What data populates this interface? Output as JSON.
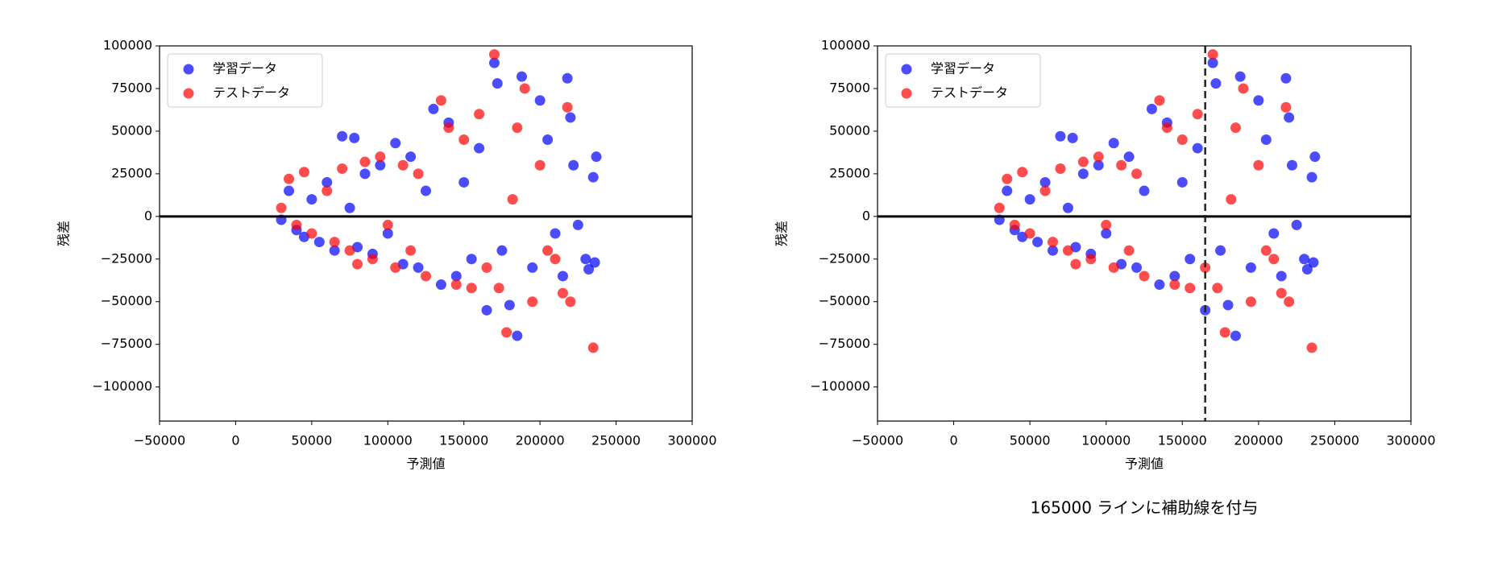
{
  "chart_data": [
    {
      "type": "scatter",
      "xlabel": "予測値",
      "ylabel": "残差",
      "xlim": [
        -50000,
        300000
      ],
      "xticks": [
        {
          "value": -50000,
          "label": "−50000"
        },
        0,
        50000,
        100000,
        150000,
        200000,
        250000,
        300000
      ],
      "ylim": [
        -120000,
        100000
      ],
      "yticks": [
        {
          "value": -100000,
          "label": "−100000"
        },
        {
          "value": -75000,
          "label": "−75000"
        },
        {
          "value": -50000,
          "label": "−50000"
        },
        {
          "value": -25000,
          "label": "−25000"
        },
        0,
        25000,
        50000,
        75000,
        100000
      ],
      "hline": 0,
      "legend": "upper left",
      "series": [
        {
          "name": "学習データ",
          "color": "#0000ff",
          "x": [
            30000,
            35000,
            40000,
            45000,
            50000,
            55000,
            60000,
            65000,
            70000,
            75000,
            78000,
            80000,
            85000,
            90000,
            95000,
            100000,
            105000,
            110000,
            115000,
            120000,
            125000,
            130000,
            135000,
            140000,
            145000,
            150000,
            155000,
            160000,
            165000,
            170000,
            172000,
            175000,
            180000,
            185000,
            188000,
            195000,
            200000,
            205000,
            210000,
            215000,
            218000,
            220000,
            222000,
            225000,
            230000,
            232000,
            235000,
            237000,
            236000
          ],
          "values": [
            -2000,
            15000,
            -8000,
            -12000,
            10000,
            -15000,
            20000,
            -20000,
            47000,
            5000,
            46000,
            -18000,
            25000,
            -22000,
            30000,
            -10000,
            43000,
            -28000,
            35000,
            -30000,
            15000,
            63000,
            -40000,
            55000,
            -35000,
            20000,
            -25000,
            40000,
            -55000,
            90000,
            78000,
            -20000,
            -52000,
            -70000,
            82000,
            -30000,
            68000,
            45000,
            -10000,
            -35000,
            81000,
            58000,
            30000,
            -5000,
            -25000,
            -31000,
            23000,
            35000,
            -27000
          ]
        },
        {
          "name": "テストデータ",
          "color": "#ff0000",
          "x": [
            30000,
            35000,
            40000,
            45000,
            50000,
            60000,
            65000,
            70000,
            75000,
            80000,
            85000,
            90000,
            95000,
            100000,
            105000,
            110000,
            115000,
            120000,
            125000,
            135000,
            140000,
            145000,
            150000,
            155000,
            160000,
            165000,
            170000,
            173000,
            178000,
            182000,
            185000,
            190000,
            195000,
            200000,
            205000,
            210000,
            215000,
            218000,
            220000,
            235000
          ],
          "values": [
            5000,
            22000,
            -5000,
            26000,
            -10000,
            15000,
            -15000,
            28000,
            -20000,
            -28000,
            32000,
            -25000,
            35000,
            -5000,
            -30000,
            30000,
            -20000,
            25000,
            -35000,
            68000,
            52000,
            -40000,
            45000,
            -42000,
            60000,
            -30000,
            95000,
            -42000,
            -68000,
            10000,
            52000,
            75000,
            -50000,
            30000,
            -20000,
            -25000,
            -45000,
            64000,
            -50000,
            -77000
          ]
        }
      ]
    },
    {
      "type": "scatter",
      "xlabel": "予測値",
      "ylabel": "残差",
      "xlim": [
        -50000,
        300000
      ],
      "xticks": [
        {
          "value": -50000,
          "label": "−50000"
        },
        0,
        50000,
        100000,
        150000,
        200000,
        250000,
        300000
      ],
      "ylim": [
        -120000,
        100000
      ],
      "yticks": [
        {
          "value": -100000,
          "label": "−100000"
        },
        {
          "value": -75000,
          "label": "−75000"
        },
        {
          "value": -50000,
          "label": "−50000"
        },
        {
          "value": -25000,
          "label": "−25000"
        },
        0,
        25000,
        50000,
        75000,
        100000
      ],
      "hline": 0,
      "vline": 165000,
      "legend": "upper left",
      "caption": "165000 ラインに補助線を付与",
      "series": [
        {
          "name": "学習データ",
          "color": "#0000ff",
          "x": [
            30000,
            35000,
            40000,
            45000,
            50000,
            55000,
            60000,
            65000,
            70000,
            75000,
            78000,
            80000,
            85000,
            90000,
            95000,
            100000,
            105000,
            110000,
            115000,
            120000,
            125000,
            130000,
            135000,
            140000,
            145000,
            150000,
            155000,
            160000,
            165000,
            170000,
            172000,
            175000,
            180000,
            185000,
            188000,
            195000,
            200000,
            205000,
            210000,
            215000,
            218000,
            220000,
            222000,
            225000,
            230000,
            232000,
            235000,
            237000,
            236000
          ],
          "values": [
            -2000,
            15000,
            -8000,
            -12000,
            10000,
            -15000,
            20000,
            -20000,
            47000,
            5000,
            46000,
            -18000,
            25000,
            -22000,
            30000,
            -10000,
            43000,
            -28000,
            35000,
            -30000,
            15000,
            63000,
            -40000,
            55000,
            -35000,
            20000,
            -25000,
            40000,
            -55000,
            90000,
            78000,
            -20000,
            -52000,
            -70000,
            82000,
            -30000,
            68000,
            45000,
            -10000,
            -35000,
            81000,
            58000,
            30000,
            -5000,
            -25000,
            -31000,
            23000,
            35000,
            -27000
          ]
        },
        {
          "name": "テストデータ",
          "color": "#ff0000",
          "x": [
            30000,
            35000,
            40000,
            45000,
            50000,
            60000,
            65000,
            70000,
            75000,
            80000,
            85000,
            90000,
            95000,
            100000,
            105000,
            110000,
            115000,
            120000,
            125000,
            135000,
            140000,
            145000,
            150000,
            155000,
            160000,
            165000,
            170000,
            173000,
            178000,
            182000,
            185000,
            190000,
            195000,
            200000,
            205000,
            210000,
            215000,
            218000,
            220000,
            235000
          ],
          "values": [
            5000,
            22000,
            -5000,
            26000,
            -10000,
            15000,
            -15000,
            28000,
            -20000,
            -28000,
            32000,
            -25000,
            35000,
            -5000,
            -30000,
            30000,
            -20000,
            25000,
            -35000,
            68000,
            52000,
            -40000,
            45000,
            -42000,
            60000,
            -30000,
            95000,
            -42000,
            -68000,
            10000,
            52000,
            75000,
            -50000,
            30000,
            -20000,
            -25000,
            -45000,
            64000,
            -50000,
            -77000
          ]
        }
      ]
    }
  ]
}
